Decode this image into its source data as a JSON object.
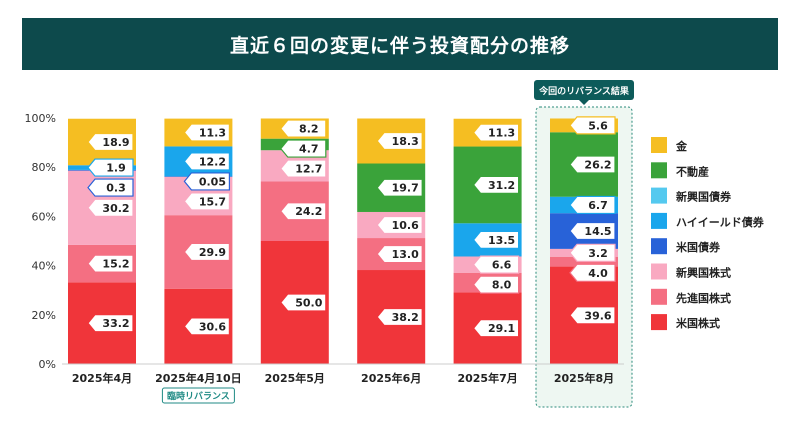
{
  "title": "直近６回の変更に伴う投資配分の推移",
  "chart_data": {
    "type": "bar",
    "stacked": true,
    "percent_axis": true,
    "categories": [
      "2025年4月",
      "2025年4月10日",
      "2025年5月",
      "2025年6月",
      "2025年7月",
      "2025年8月"
    ],
    "yticks": [
      "0%",
      "20%",
      "40%",
      "60%",
      "80%",
      "100%"
    ],
    "ylim": [
      0,
      100
    ],
    "category_note": {
      "index": 1,
      "text": "臨時リバランス"
    },
    "highlight": {
      "index": 5,
      "text": "今回のリバランス結果"
    },
    "series": [
      {
        "name": "米国株式",
        "color": "#f0353a",
        "values": [
          33.2,
          30.6,
          50.0,
          38.2,
          29.1,
          39.6
        ],
        "labels": [
          "33.2",
          "30.6",
          "50.0",
          "38.2",
          "29.1",
          "39.6"
        ]
      },
      {
        "name": "先進国株式",
        "color": "#f46f82",
        "values": [
          15.2,
          29.9,
          24.2,
          13.0,
          8.0,
          4.0
        ],
        "labels": [
          "15.2",
          "29.9",
          "24.2",
          "13.0",
          "8.0",
          "4.0"
        ]
      },
      {
        "name": "新興国株式",
        "color": "#f9a9c1",
        "values": [
          30.2,
          15.7,
          12.7,
          10.6,
          6.6,
          3.2
        ],
        "labels": [
          "30.2",
          "15.7",
          "12.7",
          "10.6",
          "6.6",
          "3.2"
        ]
      },
      {
        "name": "米国債券",
        "color": "#2862d8",
        "values": [
          0.3,
          0.05,
          0,
          0,
          0,
          14.5
        ],
        "labels": [
          "0.3",
          "0.05",
          null,
          null,
          null,
          "14.5"
        ]
      },
      {
        "name": "ハイイールド債券",
        "color": "#1aa6ec",
        "values": [
          1.9,
          12.2,
          0,
          0,
          13.5,
          6.7
        ],
        "labels": [
          "1.9",
          "12.2",
          null,
          null,
          "13.5",
          "6.7"
        ]
      },
      {
        "name": "新興国債券",
        "color": "#54c9ef",
        "values": [
          0,
          0,
          0,
          0,
          0,
          0
        ],
        "labels": [
          null,
          null,
          null,
          null,
          null,
          null
        ]
      },
      {
        "name": "不動産",
        "color": "#3aa33a",
        "values": [
          0,
          0,
          4.7,
          19.7,
          31.2,
          26.2
        ],
        "labels": [
          null,
          null,
          "4.7",
          "19.7",
          "31.2",
          "26.2"
        ]
      },
      {
        "name": "金",
        "color": "#f5be22",
        "values": [
          18.9,
          11.3,
          8.2,
          18.3,
          11.3,
          5.6
        ],
        "labels": [
          "18.9",
          "11.3",
          "8.2",
          "18.3",
          "11.3",
          "5.6"
        ]
      }
    ],
    "legend_order": [
      "金",
      "不動産",
      "新興国債券",
      "ハイイールド債券",
      "米国債券",
      "新興国株式",
      "先進国株式",
      "米国株式"
    ],
    "legend_placement": "right",
    "grid": false
  }
}
